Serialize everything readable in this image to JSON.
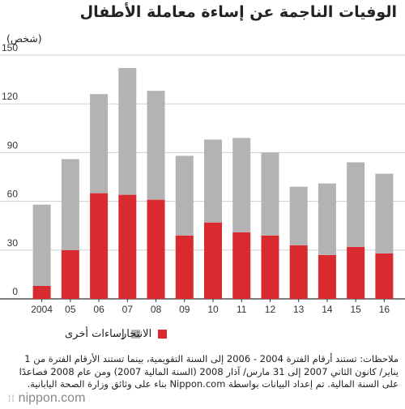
{
  "title": "الوفيات الناجمة عن إساءة معاملة الأطفال",
  "unit_label": "(شخص)",
  "colors": {
    "suicide": "#d92b2f",
    "other": "#b3b3b3",
    "grid": "#cfcfcf",
    "axis": "#333333"
  },
  "chart_data": {
    "type": "bar",
    "stacked": true,
    "title": "الوفيات الناجمة عن إساءة معاملة الأطفال",
    "ylabel": "(شخص)",
    "xlabel": "",
    "categories": [
      "2004",
      "05",
      "06",
      "07",
      "08",
      "09",
      "10",
      "11",
      "12",
      "13",
      "14",
      "15",
      "16"
    ],
    "series": [
      {
        "name": "الانتحار",
        "values": [
          8,
          30,
          65,
          64,
          61,
          39,
          47,
          41,
          39,
          33,
          27,
          32,
          28
        ]
      },
      {
        "name": "إساءات أخرى",
        "values": [
          50,
          56,
          61,
          78,
          67,
          49,
          51,
          58,
          51,
          36,
          44,
          52,
          49
        ]
      }
    ],
    "ylim": [
      0,
      150
    ],
    "yticks": [
      0,
      30,
      60,
      90,
      120,
      150
    ],
    "grid": true,
    "legend_position": "bottom"
  },
  "legend": {
    "suicide": "الانتحار",
    "other": "إساءات أخرى"
  },
  "note": "ملاحظات: تستند أرقام الفترة 2004 - 2006 إلى السنة التقويمية، بينما تستند الأرقام الفترة من 1 يناير/ كانون الثاني 2007 إلى 31 مارس/ آذار 2008 (السنة المالية 2007) ومن عام 2008 فصاعدًا على السنة المالية. تم إعداد البيانات بواسطة Nippon.com بناء على وثائق وزارة الصحة اليابانية.",
  "logo": {
    "text": "nippon.com",
    "mark_icon": "dots-mark-icon"
  }
}
